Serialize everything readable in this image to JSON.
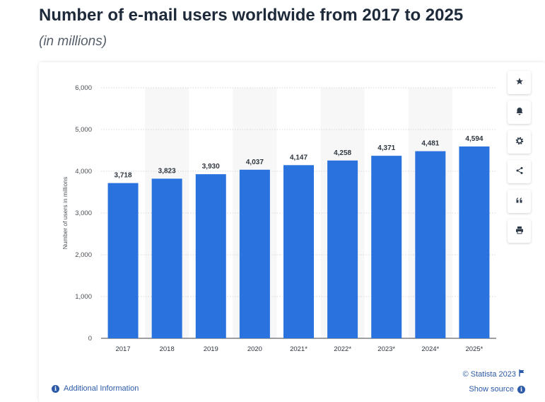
{
  "header": {
    "title": "Number of e-mail users worldwide from 2017 to 2025",
    "subtitle": "(in millions)"
  },
  "footer": {
    "credit": "© Statista 2023",
    "show_source": "Show source",
    "additional_info": "Additional Information"
  },
  "toolbar": {
    "icons": [
      "star-icon",
      "bell-icon",
      "gear-icon",
      "share-icon",
      "quote-icon",
      "print-icon"
    ]
  },
  "colors": {
    "bar": "#2a72dd",
    "band": "#f7f7f7",
    "grid": "#c9cdd2",
    "link": "#2c5aa8"
  },
  "chart_data": {
    "type": "bar",
    "categories": [
      "2017",
      "2018",
      "2019",
      "2020",
      "2021*",
      "2022*",
      "2023*",
      "2024*",
      "2025*"
    ],
    "values": [
      3718,
      3823,
      3930,
      4037,
      4147,
      4258,
      4371,
      4481,
      4594
    ],
    "value_labels": [
      "3,718",
      "3,823",
      "3,930",
      "4,037",
      "4,147",
      "4,258",
      "4,371",
      "4,481",
      "4,594"
    ],
    "ylabel": "Number of users in millions",
    "ylim": [
      0,
      6000
    ],
    "yticks": [
      0,
      1000,
      2000,
      3000,
      4000,
      5000,
      6000
    ],
    "ytick_labels": [
      "0",
      "1,000",
      "2,000",
      "3,000",
      "4,000",
      "5,000",
      "6,000"
    ],
    "grid": true,
    "alternating_column_bands": true
  }
}
